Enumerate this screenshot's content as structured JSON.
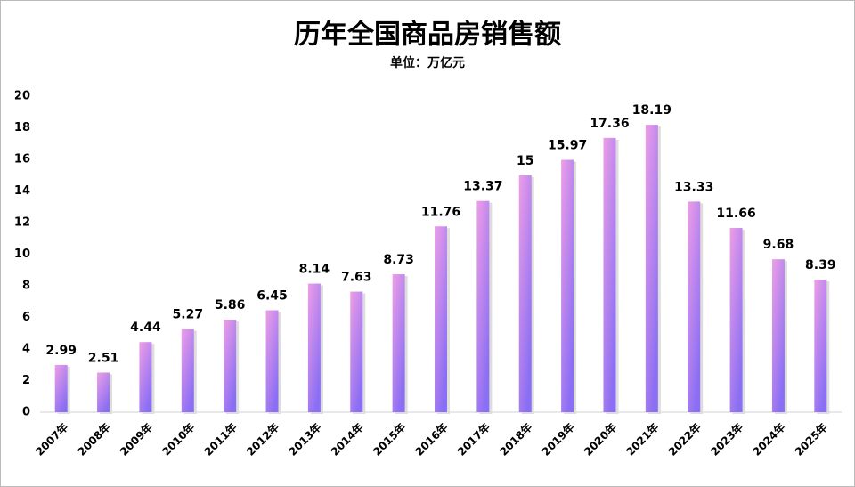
{
  "chart_data": {
    "type": "bar",
    "title": "历年全国商品房销售额",
    "subtitle": "单位：万亿元",
    "categories": [
      "2007年",
      "2008年",
      "2009年",
      "2010年",
      "2011年",
      "2012年",
      "2013年",
      "2014年",
      "2015年",
      "2016年",
      "2017年",
      "2018年",
      "2019年",
      "2020年",
      "2021年",
      "2022年",
      "2023年",
      "2024年",
      "2025年"
    ],
    "values": [
      2.99,
      2.51,
      4.44,
      5.27,
      5.86,
      6.45,
      8.14,
      7.63,
      8.73,
      11.76,
      13.37,
      15,
      15.97,
      17.36,
      18.19,
      13.33,
      11.66,
      9.68,
      8.39
    ],
    "colors": [
      "#ee9ee6",
      "#8a6ef4"
    ],
    "ylim": [
      0,
      20
    ],
    "yticks": [
      0,
      2,
      4,
      6,
      8,
      10,
      12,
      14,
      16,
      18,
      20
    ],
    "grid": false
  }
}
